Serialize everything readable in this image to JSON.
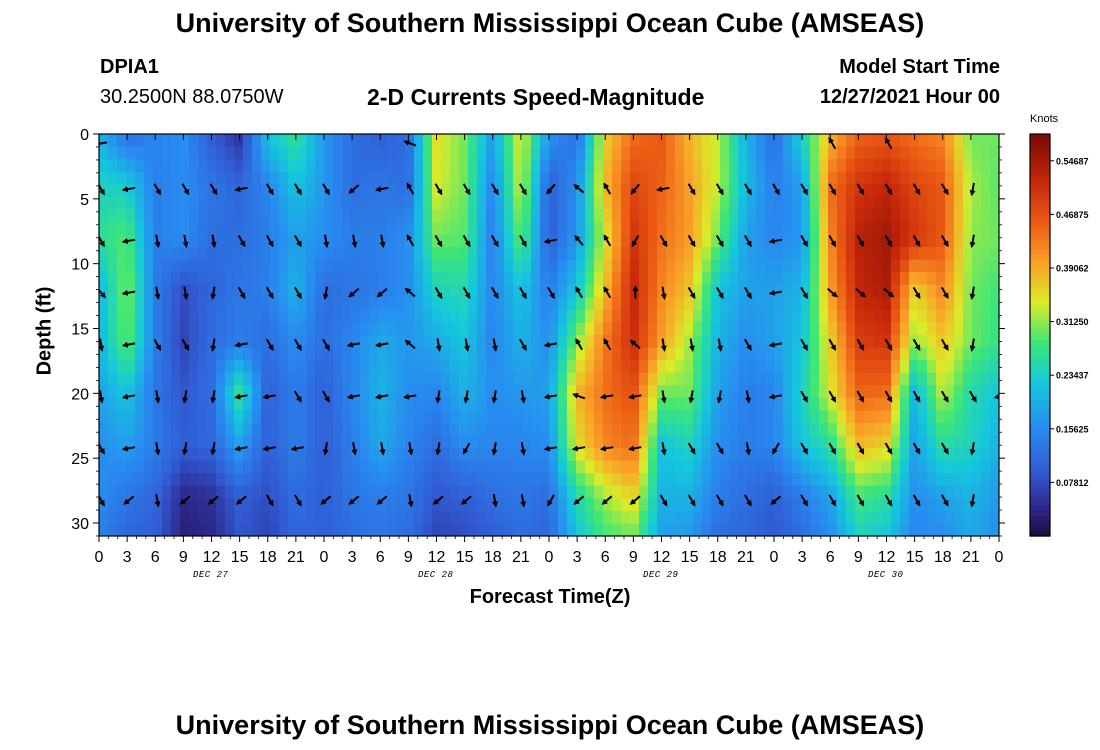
{
  "chart_data": {
    "type": "heatmap",
    "title": "University of Southern Mississippi Ocean Cube (AMSEAS)",
    "subtitle": "2-D Currents Speed-Magnitude",
    "station_id": "DPIA1",
    "station_coords": "30.2500N  88.0750W",
    "model_start_label": "Model Start Time",
    "model_start_value": "12/27/2021 Hour 00",
    "xlabel": "Forecast Time(Z)",
    "ylabel": "Depth (ft)",
    "x_ticks": [
      "0",
      "3",
      "6",
      "9",
      "12",
      "15",
      "18",
      "21",
      "0",
      "3",
      "6",
      "9",
      "12",
      "15",
      "18",
      "21",
      "0",
      "3",
      "6",
      "9",
      "12",
      "15",
      "18",
      "21",
      "0",
      "3",
      "6",
      "9",
      "12",
      "15",
      "18",
      "21",
      "0"
    ],
    "day_labels": [
      "DEC 27",
      "DEC 28",
      "DEC 29",
      "DEC 30"
    ],
    "y_ticks": [
      "0",
      "5",
      "10",
      "15",
      "20",
      "25",
      "30"
    ],
    "y_tick_values": [
      0,
      5,
      10,
      15,
      20,
      25,
      30
    ],
    "ylim": [
      0,
      31
    ],
    "xlim_hours": [
      0,
      96
    ],
    "colorbar": {
      "unit": "Knots",
      "ticks": [
        "0.54687",
        "0.46875",
        "0.39062",
        "0.31250",
        "0.23437",
        "0.15625",
        "0.07812"
      ],
      "tick_values": [
        0.54687,
        0.46875,
        0.39062,
        0.3125,
        0.23437,
        0.15625,
        0.07812
      ],
      "range": [
        0,
        0.5859
      ]
    },
    "time_hours": [
      0,
      3,
      6,
      9,
      12,
      15,
      18,
      21,
      24,
      27,
      30,
      33,
      36,
      39,
      42,
      45,
      48,
      51,
      54,
      57,
      60,
      63,
      66,
      69,
      72,
      75,
      78,
      81,
      84,
      87,
      90,
      93,
      96
    ],
    "depth_ft": [
      0,
      4,
      8,
      12,
      16,
      20,
      24,
      28,
      31
    ],
    "speed_knots": [
      [
        0.2,
        0.12,
        0.15,
        0.16,
        0.1,
        0.05,
        0.22,
        0.27,
        0.17,
        0.12,
        0.1,
        0.12,
        0.35,
        0.3,
        0.18,
        0.35,
        0.17,
        0.12,
        0.36,
        0.44,
        0.46,
        0.38,
        0.33,
        0.2,
        0.12,
        0.24,
        0.38,
        0.45,
        0.46,
        0.44,
        0.42,
        0.3,
        0.3
      ],
      [
        0.24,
        0.23,
        0.14,
        0.16,
        0.13,
        0.11,
        0.15,
        0.22,
        0.17,
        0.12,
        0.13,
        0.12,
        0.34,
        0.3,
        0.15,
        0.34,
        0.1,
        0.16,
        0.38,
        0.48,
        0.45,
        0.4,
        0.33,
        0.21,
        0.14,
        0.18,
        0.44,
        0.5,
        0.52,
        0.48,
        0.46,
        0.32,
        0.29
      ],
      [
        0.26,
        0.29,
        0.14,
        0.16,
        0.12,
        0.12,
        0.14,
        0.18,
        0.16,
        0.14,
        0.14,
        0.16,
        0.3,
        0.29,
        0.14,
        0.3,
        0.1,
        0.17,
        0.34,
        0.5,
        0.44,
        0.4,
        0.3,
        0.18,
        0.15,
        0.17,
        0.42,
        0.53,
        0.55,
        0.5,
        0.46,
        0.31,
        0.3
      ],
      [
        0.2,
        0.31,
        0.14,
        0.08,
        0.11,
        0.13,
        0.14,
        0.2,
        0.12,
        0.13,
        0.14,
        0.16,
        0.24,
        0.25,
        0.15,
        0.22,
        0.14,
        0.22,
        0.38,
        0.52,
        0.42,
        0.37,
        0.22,
        0.18,
        0.18,
        0.2,
        0.4,
        0.52,
        0.54,
        0.36,
        0.42,
        0.3,
        0.28
      ],
      [
        0.2,
        0.3,
        0.14,
        0.07,
        0.12,
        0.14,
        0.12,
        0.16,
        0.12,
        0.15,
        0.19,
        0.17,
        0.19,
        0.22,
        0.15,
        0.2,
        0.16,
        0.31,
        0.43,
        0.51,
        0.4,
        0.32,
        0.2,
        0.16,
        0.18,
        0.22,
        0.36,
        0.49,
        0.5,
        0.31,
        0.37,
        0.3,
        0.27
      ],
      [
        0.18,
        0.22,
        0.13,
        0.09,
        0.12,
        0.27,
        0.1,
        0.14,
        0.1,
        0.15,
        0.2,
        0.16,
        0.15,
        0.2,
        0.16,
        0.17,
        0.18,
        0.38,
        0.44,
        0.47,
        0.3,
        0.3,
        0.18,
        0.14,
        0.15,
        0.24,
        0.34,
        0.45,
        0.44,
        0.2,
        0.33,
        0.25,
        0.22
      ],
      [
        0.16,
        0.18,
        0.14,
        0.1,
        0.11,
        0.18,
        0.1,
        0.14,
        0.1,
        0.14,
        0.19,
        0.15,
        0.12,
        0.16,
        0.15,
        0.15,
        0.16,
        0.35,
        0.42,
        0.44,
        0.22,
        0.24,
        0.16,
        0.14,
        0.15,
        0.22,
        0.26,
        0.38,
        0.36,
        0.18,
        0.26,
        0.24,
        0.2
      ],
      [
        0.16,
        0.13,
        0.11,
        0.04,
        0.05,
        0.1,
        0.08,
        0.12,
        0.1,
        0.13,
        0.14,
        0.13,
        0.09,
        0.1,
        0.12,
        0.13,
        0.12,
        0.25,
        0.32,
        0.36,
        0.2,
        0.2,
        0.14,
        0.12,
        0.1,
        0.14,
        0.18,
        0.28,
        0.26,
        0.16,
        0.18,
        0.2,
        0.17
      ],
      [
        0.14,
        0.11,
        0.1,
        0.03,
        0.04,
        0.09,
        0.07,
        0.11,
        0.1,
        0.12,
        0.13,
        0.12,
        0.07,
        0.08,
        0.1,
        0.12,
        0.11,
        0.22,
        0.28,
        0.3,
        0.18,
        0.17,
        0.12,
        0.11,
        0.09,
        0.12,
        0.16,
        0.24,
        0.22,
        0.15,
        0.16,
        0.19,
        0.16
      ]
    ],
    "arrow_rows_ft": [
      0.5,
      4,
      8,
      12,
      16,
      20,
      24,
      28
    ],
    "arrow_dirs_deg": [
      [
        170,
        null,
        null,
        null,
        null,
        null,
        null,
        null,
        null,
        null,
        null,
        200,
        null,
        null,
        null,
        null,
        null,
        null,
        null,
        null,
        null,
        null,
        null,
        null,
        null,
        null,
        240,
        null,
        240,
        null,
        null,
        null,
        null
      ],
      [
        60,
        170,
        60,
        60,
        60,
        170,
        60,
        60,
        60,
        140,
        170,
        240,
        60,
        60,
        60,
        60,
        130,
        220,
        240,
        130,
        170,
        60,
        60,
        60,
        60,
        60,
        60,
        60,
        60,
        60,
        60,
        100,
        80
      ],
      [
        60,
        170,
        80,
        80,
        80,
        60,
        60,
        60,
        80,
        80,
        80,
        240,
        60,
        60,
        60,
        60,
        170,
        230,
        240,
        120,
        60,
        60,
        60,
        60,
        170,
        60,
        60,
        60,
        60,
        60,
        60,
        100,
        80
      ],
      [
        50,
        170,
        80,
        80,
        100,
        60,
        60,
        60,
        100,
        140,
        140,
        220,
        60,
        60,
        60,
        60,
        60,
        240,
        240,
        270,
        80,
        60,
        60,
        60,
        170,
        60,
        40,
        40,
        40,
        60,
        60,
        100,
        80
      ],
      [
        80,
        170,
        60,
        60,
        100,
        170,
        60,
        60,
        60,
        170,
        170,
        220,
        80,
        80,
        80,
        60,
        170,
        240,
        240,
        220,
        80,
        80,
        80,
        60,
        170,
        60,
        60,
        60,
        60,
        60,
        60,
        100,
        80
      ],
      [
        80,
        170,
        80,
        100,
        100,
        170,
        170,
        60,
        60,
        170,
        170,
        170,
        100,
        100,
        100,
        80,
        170,
        200,
        170,
        170,
        80,
        100,
        100,
        80,
        170,
        60,
        60,
        60,
        60,
        60,
        60,
        60,
        170
      ],
      [
        60,
        170,
        80,
        100,
        100,
        170,
        170,
        170,
        100,
        80,
        80,
        80,
        100,
        120,
        100,
        80,
        170,
        170,
        170,
        170,
        80,
        60,
        60,
        80,
        120,
        60,
        60,
        60,
        60,
        60,
        60,
        100,
        80
      ],
      [
        60,
        140,
        80,
        140,
        140,
        140,
        60,
        60,
        140,
        140,
        140,
        80,
        140,
        140,
        80,
        80,
        120,
        140,
        140,
        140,
        60,
        60,
        60,
        60,
        140,
        60,
        60,
        60,
        60,
        60,
        60,
        100,
        80
      ]
    ]
  }
}
